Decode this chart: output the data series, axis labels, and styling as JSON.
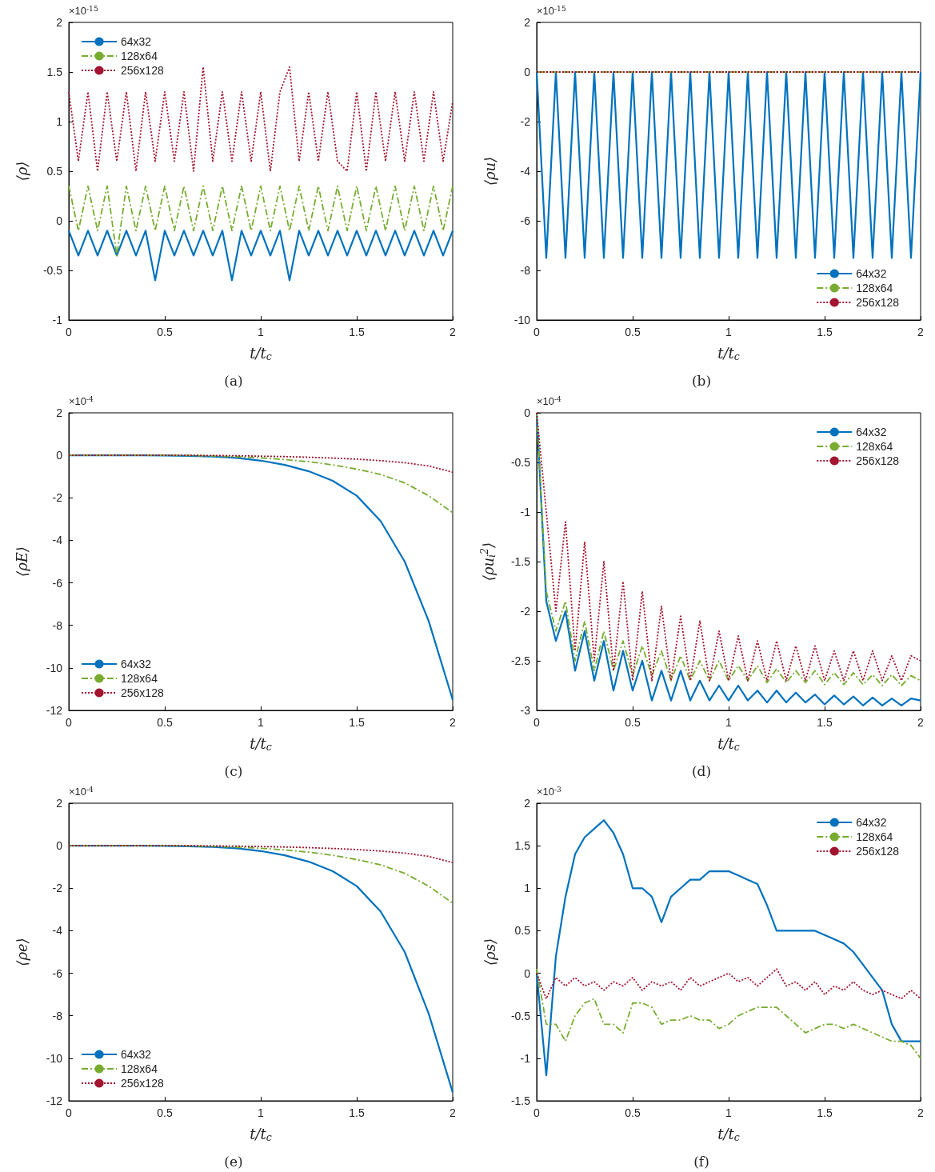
{
  "chart_data": [
    {
      "type": "line",
      "title": "(a)",
      "xlabel": "t/t$_{c}$",
      "ylabel": "⟨ρ⟩",
      "annotations": [
        "×10$^{-15}$"
      ],
      "xlim": [
        0,
        2
      ],
      "xticks": [
        0,
        0.5,
        1,
        1.5,
        2
      ],
      "ylim": [
        -1,
        2
      ],
      "yticks": [
        -1,
        -0.5,
        0,
        0.5,
        1,
        1.5,
        2
      ],
      "legend": "top left",
      "grid": false,
      "x": [
        0,
        0.05,
        0.1,
        0.15,
        0.2,
        0.25,
        0.3,
        0.35,
        0.4,
        0.45,
        0.5,
        0.55,
        0.6,
        0.65,
        0.7,
        0.75,
        0.8,
        0.85,
        0.9,
        0.95,
        1,
        1.05,
        1.1,
        1.15,
        1.2,
        1.25,
        1.3,
        1.35,
        1.4,
        1.45,
        1.5,
        1.55,
        1.6,
        1.65,
        1.7,
        1.75,
        1.8,
        1.85,
        1.9,
        1.95,
        2
      ],
      "series": [
        {
          "name": "64x32",
          "color": "#0072bd",
          "line_style": "solid",
          "values": [
            -0.1,
            -0.35,
            -0.1,
            -0.35,
            -0.1,
            -0.35,
            -0.1,
            -0.35,
            -0.1,
            -0.6,
            -0.1,
            -0.35,
            -0.1,
            -0.35,
            -0.1,
            -0.35,
            -0.1,
            -0.6,
            -0.1,
            -0.35,
            -0.1,
            -0.35,
            -0.1,
            -0.6,
            -0.1,
            -0.35,
            -0.1,
            -0.35,
            -0.1,
            -0.35,
            -0.1,
            -0.35,
            -0.1,
            -0.35,
            -0.1,
            -0.35,
            -0.1,
            -0.35,
            -0.1,
            -0.35,
            -0.1
          ]
        },
        {
          "name": "128x64",
          "color": "#77ac30",
          "line_style": "dashed",
          "values": [
            0.35,
            -0.1,
            0.35,
            -0.1,
            0.35,
            -0.35,
            0.35,
            -0.1,
            0.35,
            -0.1,
            0.35,
            -0.1,
            0.35,
            -0.1,
            0.35,
            -0.1,
            0.35,
            -0.1,
            0.35,
            -0.1,
            0.35,
            -0.1,
            0.35,
            -0.1,
            0.35,
            -0.1,
            0.35,
            -0.1,
            0.35,
            -0.1,
            0.35,
            -0.1,
            0.35,
            -0.1,
            0.35,
            -0.1,
            0.35,
            -0.1,
            0.35,
            -0.1,
            0.35
          ]
        },
        {
          "name": "256x128",
          "color": "#a2142f",
          "line_style": "dotted",
          "values": [
            1.3,
            0.6,
            1.3,
            0.5,
            1.3,
            0.6,
            1.3,
            0.5,
            1.3,
            0.6,
            1.3,
            0.6,
            1.3,
            0.5,
            1.55,
            0.6,
            1.3,
            0.6,
            1.3,
            0.6,
            1.3,
            0.5,
            1.3,
            1.55,
            0.6,
            1.3,
            0.6,
            1.3,
            0.6,
            0.5,
            1.3,
            0.5,
            1.3,
            0.6,
            1.3,
            0.6,
            1.3,
            0.6,
            1.3,
            0.6,
            1.2
          ]
        }
      ]
    },
    {
      "type": "line",
      "title": "(b)",
      "xlabel": "t/t$_{c}$",
      "ylabel": "⟨ρu⟩",
      "annotations": [
        "×10$^{-15}$"
      ],
      "xlim": [
        0,
        2
      ],
      "xticks": [
        0,
        0.5,
        1,
        1.5,
        2
      ],
      "ylim": [
        -10,
        2
      ],
      "yticks": [
        -10,
        -8,
        -6,
        -4,
        -2,
        0,
        2
      ],
      "legend": "bottom right",
      "grid": false,
      "series": [
        {
          "name": "64x32",
          "color": "#0072bd",
          "line_style": "solid",
          "x": [
            0,
            0.05,
            0.1,
            0.15,
            0.2,
            0.25,
            0.3,
            0.35,
            0.4,
            0.45,
            0.5,
            0.55,
            0.6,
            0.65,
            0.7,
            0.75,
            0.8,
            0.85,
            0.9,
            0.95,
            1,
            1.05,
            1.1,
            1.15,
            1.2,
            1.25,
            1.3,
            1.35,
            1.4,
            1.45,
            1.5,
            1.55,
            1.6,
            1.65,
            1.7,
            1.75,
            1.8,
            1.85,
            1.9,
            1.95,
            2
          ],
          "values": [
            0,
            -7.5,
            0,
            -7.5,
            0,
            -7.5,
            0,
            -7.5,
            0,
            -7.5,
            0,
            -7.5,
            0,
            -7.5,
            0,
            -7.5,
            0,
            -7.5,
            0,
            -7.5,
            0,
            -7.5,
            0,
            -7.5,
            0,
            -7.5,
            0,
            -7.5,
            0,
            -7.5,
            0,
            -7.5,
            0,
            -7.5,
            0,
            -7.5,
            0,
            -7.5,
            0,
            -7.5,
            0
          ]
        },
        {
          "name": "128x64",
          "color": "#77ac30",
          "line_style": "dashed",
          "x": [
            0,
            2
          ],
          "values": [
            0,
            0
          ]
        },
        {
          "name": "256x128",
          "color": "#a2142f",
          "line_style": "dotted",
          "x": [
            0,
            2
          ],
          "values": [
            0,
            0
          ]
        }
      ]
    },
    {
      "type": "line",
      "title": "(c)",
      "xlabel": "t/t$_{c}$",
      "ylabel": "⟨ρE⟩",
      "annotations": [
        "×10$^{-4}$"
      ],
      "xlim": [
        0,
        2
      ],
      "xticks": [
        0,
        0.5,
        1,
        1.5,
        2
      ],
      "ylim": [
        -12,
        2
      ],
      "yticks": [
        -12,
        -10,
        -8,
        -6,
        -4,
        -2,
        0,
        2
      ],
      "legend": "bottom left",
      "grid": false,
      "x": [
        0,
        0.125,
        0.25,
        0.375,
        0.5,
        0.625,
        0.75,
        0.875,
        1,
        1.125,
        1.25,
        1.375,
        1.5,
        1.625,
        1.75,
        1.875,
        2
      ],
      "series": [
        {
          "name": "64x32",
          "color": "#0072bd",
          "line_style": "solid",
          "values": [
            0,
            0,
            0,
            0,
            -0.01,
            -0.03,
            -0.06,
            -0.12,
            -0.25,
            -0.45,
            -0.75,
            -1.2,
            -1.9,
            -3.1,
            -5,
            -7.8,
            -11.5
          ]
        },
        {
          "name": "128x64",
          "color": "#77ac30",
          "line_style": "dashed",
          "values": [
            0,
            0,
            0,
            0,
            0,
            -0.01,
            -0.03,
            -0.07,
            -0.12,
            -0.2,
            -0.3,
            -0.45,
            -0.65,
            -0.9,
            -1.3,
            -1.9,
            -2.7
          ]
        },
        {
          "name": "256x128",
          "color": "#a2142f",
          "line_style": "dotted",
          "values": [
            0,
            0,
            0,
            0,
            0,
            0,
            -0.01,
            -0.02,
            -0.04,
            -0.06,
            -0.09,
            -0.13,
            -0.18,
            -0.25,
            -0.35,
            -0.5,
            -0.8
          ]
        }
      ]
    },
    {
      "type": "line",
      "title": "(d)",
      "xlabel": "t/t$_{c}$",
      "ylabel": "⟨ρu$_{i}$$^{2}$⟩",
      "annotations": [
        "×10$^{-4}$"
      ],
      "xlim": [
        0,
        2
      ],
      "xticks": [
        0,
        0.5,
        1,
        1.5,
        2
      ],
      "ylim": [
        -3,
        0
      ],
      "yticks": [
        -3,
        -2.5,
        -2,
        -1.5,
        -1,
        -0.5,
        0
      ],
      "legend": "top right",
      "grid": false,
      "x": [
        0,
        0.05,
        0.1,
        0.15,
        0.2,
        0.25,
        0.3,
        0.35,
        0.4,
        0.45,
        0.5,
        0.55,
        0.6,
        0.65,
        0.7,
        0.75,
        0.8,
        0.85,
        0.9,
        0.95,
        1,
        1.05,
        1.1,
        1.15,
        1.2,
        1.25,
        1.3,
        1.35,
        1.4,
        1.45,
        1.5,
        1.55,
        1.6,
        1.65,
        1.7,
        1.75,
        1.8,
        1.85,
        1.9,
        1.95,
        2
      ],
      "series": [
        {
          "name": "64x32",
          "color": "#0072bd",
          "line_style": "solid",
          "values": [
            0,
            -1.9,
            -2.3,
            -2,
            -2.6,
            -2.2,
            -2.7,
            -2.3,
            -2.8,
            -2.4,
            -2.8,
            -2.5,
            -2.9,
            -2.6,
            -2.9,
            -2.6,
            -2.9,
            -2.7,
            -2.9,
            -2.75,
            -2.9,
            -2.75,
            -2.9,
            -2.8,
            -2.92,
            -2.8,
            -2.92,
            -2.82,
            -2.92,
            -2.84,
            -2.94,
            -2.85,
            -2.94,
            -2.86,
            -2.95,
            -2.87,
            -2.95,
            -2.88,
            -2.95,
            -2.88,
            -2.9
          ]
        },
        {
          "name": "128x64",
          "color": "#77ac30",
          "line_style": "dashed",
          "values": [
            0,
            -1.8,
            -2.2,
            -1.9,
            -2.5,
            -2.1,
            -2.6,
            -2.2,
            -2.6,
            -2.3,
            -2.65,
            -2.35,
            -2.65,
            -2.4,
            -2.7,
            -2.45,
            -2.7,
            -2.5,
            -2.7,
            -2.5,
            -2.7,
            -2.55,
            -2.7,
            -2.55,
            -2.72,
            -2.58,
            -2.72,
            -2.6,
            -2.72,
            -2.6,
            -2.74,
            -2.62,
            -2.74,
            -2.62,
            -2.74,
            -2.64,
            -2.75,
            -2.64,
            -2.75,
            -2.65,
            -2.7
          ]
        },
        {
          "name": "256x128",
          "color": "#a2142f",
          "line_style": "dotted",
          "values": [
            0,
            -1,
            -2,
            -1.1,
            -2.4,
            -1.3,
            -2.5,
            -1.5,
            -2.6,
            -1.7,
            -2.7,
            -1.8,
            -2.7,
            -1.95,
            -2.7,
            -2.05,
            -2.7,
            -2.1,
            -2.7,
            -2.2,
            -2.7,
            -2.25,
            -2.7,
            -2.3,
            -2.7,
            -2.3,
            -2.7,
            -2.35,
            -2.7,
            -2.35,
            -2.7,
            -2.4,
            -2.7,
            -2.4,
            -2.7,
            -2.4,
            -2.7,
            -2.45,
            -2.7,
            -2.45,
            -2.5
          ]
        }
      ]
    },
    {
      "type": "line",
      "title": "(e)",
      "xlabel": "t/t$_{c}$",
      "ylabel": "⟨ρe⟩",
      "annotations": [
        "×10$^{-4}$"
      ],
      "xlim": [
        0,
        2
      ],
      "xticks": [
        0,
        0.5,
        1,
        1.5,
        2
      ],
      "ylim": [
        -12,
        2
      ],
      "yticks": [
        -12,
        -10,
        -8,
        -6,
        -4,
        -2,
        0,
        2
      ],
      "legend": "bottom left",
      "grid": false,
      "x": [
        0,
        0.125,
        0.25,
        0.375,
        0.5,
        0.625,
        0.75,
        0.875,
        1,
        1.125,
        1.25,
        1.375,
        1.5,
        1.625,
        1.75,
        1.875,
        2
      ],
      "series": [
        {
          "name": "64x32",
          "color": "#0072bd",
          "line_style": "solid",
          "values": [
            0,
            0,
            0,
            0,
            -0.01,
            -0.03,
            -0.06,
            -0.12,
            -0.25,
            -0.45,
            -0.75,
            -1.2,
            -1.9,
            -3.1,
            -5,
            -7.9,
            -11.6
          ]
        },
        {
          "name": "128x64",
          "color": "#77ac30",
          "line_style": "dashed",
          "values": [
            0,
            0,
            0,
            0,
            0,
            -0.01,
            -0.03,
            -0.07,
            -0.12,
            -0.2,
            -0.3,
            -0.45,
            -0.65,
            -0.9,
            -1.3,
            -1.9,
            -2.7
          ]
        },
        {
          "name": "256x128",
          "color": "#a2142f",
          "line_style": "dotted",
          "values": [
            0,
            0,
            0,
            0,
            0,
            0,
            -0.01,
            -0.02,
            -0.04,
            -0.06,
            -0.09,
            -0.13,
            -0.18,
            -0.25,
            -0.35,
            -0.5,
            -0.8
          ]
        }
      ]
    },
    {
      "type": "line",
      "title": "(f)",
      "xlabel": "t/t$_{c}$",
      "ylabel": "⟨ρs⟩",
      "annotations": [
        "×10$^{-3}$"
      ],
      "xlim": [
        0,
        2
      ],
      "xticks": [
        0,
        0.5,
        1,
        1.5,
        2
      ],
      "ylim": [
        -1.5,
        2
      ],
      "yticks": [
        -1.5,
        -1,
        -0.5,
        0,
        0.5,
        1,
        1.5,
        2
      ],
      "legend": "top right",
      "grid": false,
      "x": [
        0,
        0.05,
        0.1,
        0.15,
        0.2,
        0.25,
        0.3,
        0.35,
        0.4,
        0.45,
        0.5,
        0.55,
        0.6,
        0.65,
        0.7,
        0.75,
        0.8,
        0.85,
        0.9,
        0.95,
        1,
        1.05,
        1.1,
        1.15,
        1.2,
        1.25,
        1.3,
        1.35,
        1.4,
        1.45,
        1.5,
        1.55,
        1.6,
        1.65,
        1.7,
        1.75,
        1.8,
        1.85,
        1.9,
        1.95,
        2
      ],
      "series": [
        {
          "name": "64x32",
          "color": "#0072bd",
          "line_style": "solid",
          "values": [
            0,
            -1.2,
            0.2,
            0.9,
            1.4,
            1.6,
            1.7,
            1.8,
            1.65,
            1.4,
            1,
            1,
            0.9,
            0.6,
            0.9,
            1,
            1.1,
            1.1,
            1.2,
            1.2,
            1.2,
            1.15,
            1.1,
            1.05,
            0.8,
            0.5,
            0.5,
            0.5,
            0.5,
            0.5,
            0.45,
            0.4,
            0.35,
            0.25,
            0.1,
            -0.05,
            -0.2,
            -0.6,
            -0.8,
            -0.8,
            -0.8
          ]
        },
        {
          "name": "128x64",
          "color": "#77ac30",
          "line_style": "dashed",
          "values": [
            0.05,
            -0.6,
            -0.6,
            -0.8,
            -0.5,
            -0.35,
            -0.3,
            -0.6,
            -0.6,
            -0.7,
            -0.35,
            -0.35,
            -0.4,
            -0.6,
            -0.55,
            -0.55,
            -0.5,
            -0.55,
            -0.55,
            -0.65,
            -0.6,
            -0.5,
            -0.45,
            -0.4,
            -0.4,
            -0.4,
            -0.5,
            -0.6,
            -0.7,
            -0.65,
            -0.6,
            -0.6,
            -0.65,
            -0.6,
            -0.65,
            -0.7,
            -0.75,
            -0.8,
            -0.8,
            -0.85,
            -1
          ]
        },
        {
          "name": "256x128",
          "color": "#a2142f",
          "line_style": "dotted",
          "values": [
            0,
            -0.3,
            -0.05,
            -0.15,
            -0.05,
            -0.15,
            -0.1,
            -0.2,
            -0.1,
            -0.15,
            -0.05,
            -0.2,
            -0.1,
            -0.15,
            -0.1,
            -0.2,
            -0.05,
            -0.15,
            -0.1,
            -0.05,
            0,
            -0.1,
            -0.05,
            -0.15,
            -0.05,
            0.05,
            -0.15,
            -0.1,
            -0.2,
            -0.1,
            -0.25,
            -0.15,
            -0.2,
            -0.1,
            -0.2,
            -0.25,
            -0.2,
            -0.25,
            -0.3,
            -0.2,
            -0.3
          ]
        }
      ]
    }
  ]
}
